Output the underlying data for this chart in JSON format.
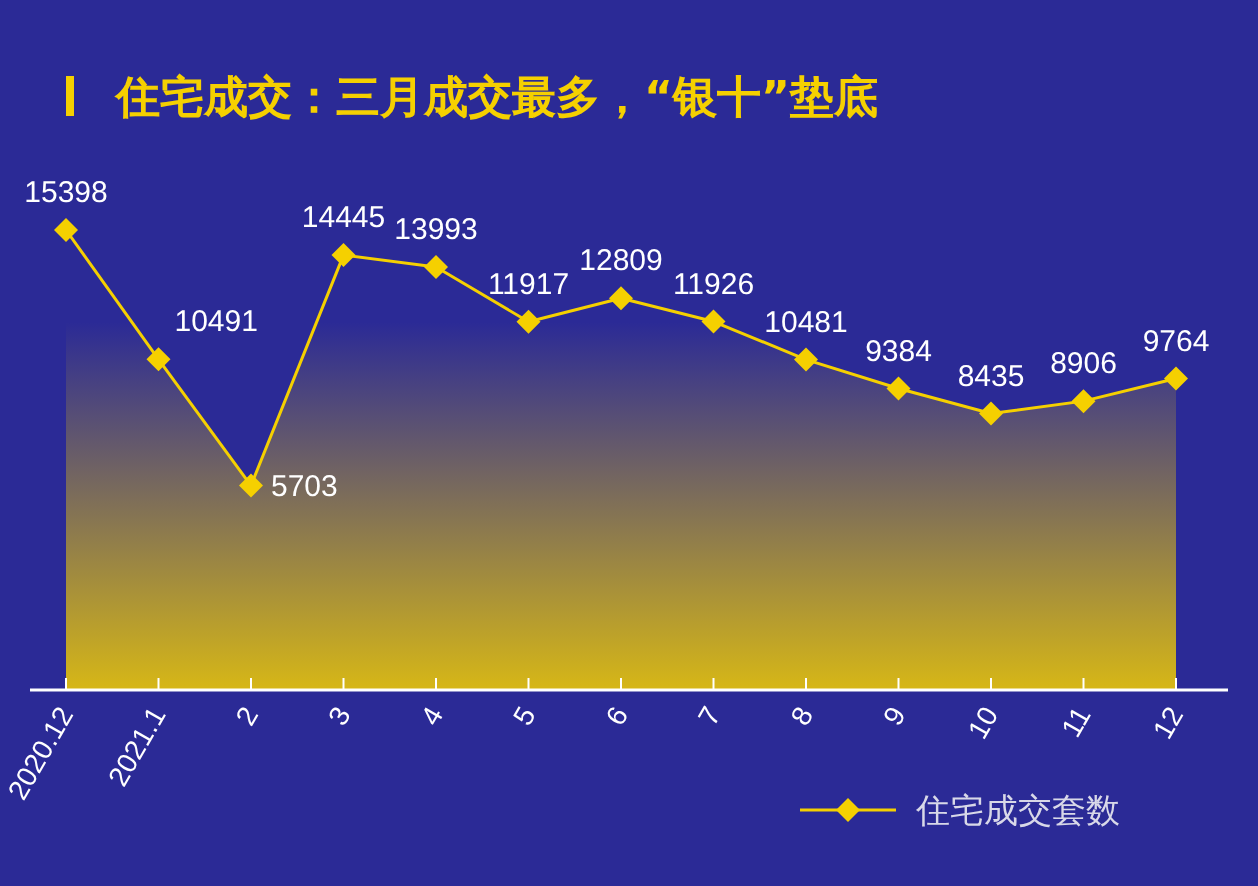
{
  "chart_data": {
    "type": "area",
    "title": "住宅成交：三月成交最多，“银十”垫底",
    "categories": [
      "2020.12",
      "2021.1",
      "2",
      "3",
      "4",
      "5",
      "6",
      "7",
      "8",
      "9",
      "10",
      "11",
      "12"
    ],
    "series": [
      {
        "name": "住宅成交套数",
        "color": "#f5d000",
        "values": [
          15398,
          10491,
          5703,
          14445,
          13993,
          11917,
          12809,
          11926,
          10481,
          9384,
          8435,
          8906,
          9764
        ]
      }
    ],
    "data_labels": true,
    "marker": "diamond",
    "legend": "bottom right",
    "grid": false
  }
}
